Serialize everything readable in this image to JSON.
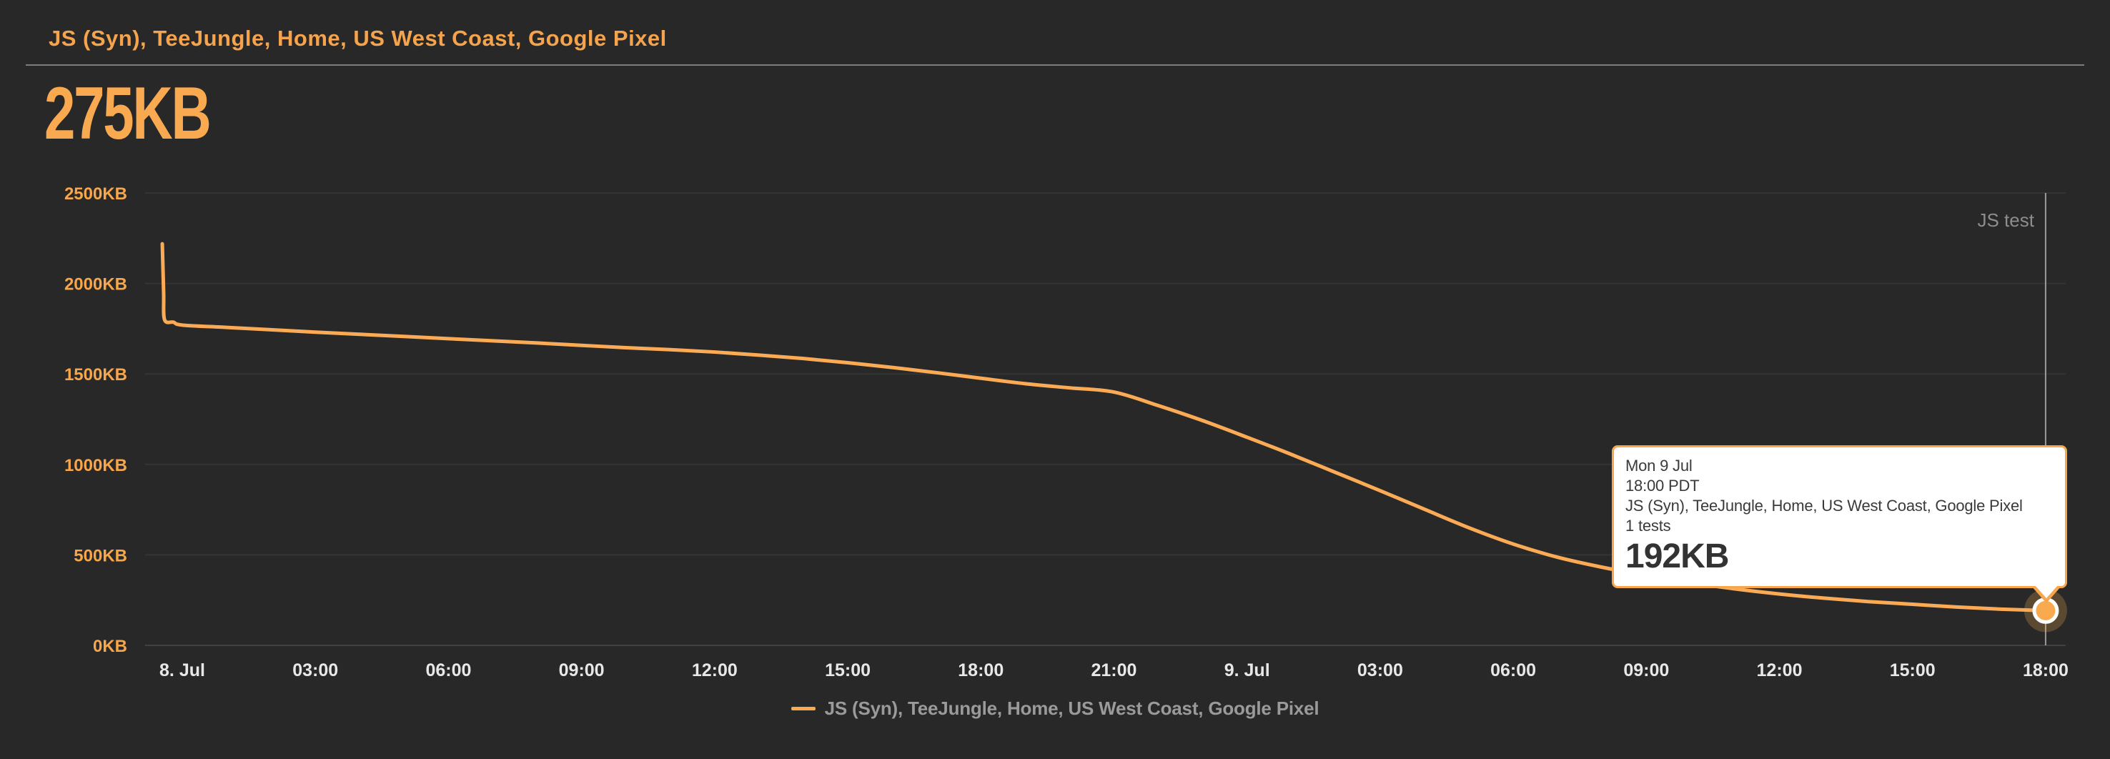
{
  "header": {
    "title": "JS (Syn), TeeJungle, Home, US West Coast, Google Pixel",
    "metric_value": "275KB"
  },
  "chart_data": {
    "type": "line",
    "title": "JS (Syn), TeeJungle, Home, US West Coast, Google Pixel",
    "unit": "KB",
    "ylim": [
      0,
      2500
    ],
    "grid": true,
    "yticks": [
      {
        "value": 2500,
        "label": "2500KB"
      },
      {
        "value": 2000,
        "label": "2000KB"
      },
      {
        "value": 1500,
        "label": "1500KB"
      },
      {
        "value": 1000,
        "label": "1000KB"
      },
      {
        "value": 500,
        "label": "500KB"
      },
      {
        "value": 0,
        "label": "0KB"
      }
    ],
    "xticks": [
      {
        "hour": 0,
        "label": "8. Jul"
      },
      {
        "hour": 3,
        "label": "03:00"
      },
      {
        "hour": 6,
        "label": "06:00"
      },
      {
        "hour": 9,
        "label": "09:00"
      },
      {
        "hour": 12,
        "label": "12:00"
      },
      {
        "hour": 15,
        "label": "15:00"
      },
      {
        "hour": 18,
        "label": "18:00"
      },
      {
        "hour": 21,
        "label": "21:00"
      },
      {
        "hour": 24,
        "label": "9. Jul"
      },
      {
        "hour": 27,
        "label": "03:00"
      },
      {
        "hour": 30,
        "label": "06:00"
      },
      {
        "hour": 33,
        "label": "09:00"
      },
      {
        "hour": 36,
        "label": "12:00"
      },
      {
        "hour": 39,
        "label": "15:00"
      },
      {
        "hour": 42,
        "label": "18:00"
      }
    ],
    "series": [
      {
        "name": "JS (Syn), TeeJungle, Home, US West Coast, Google Pixel",
        "color": "#fbab55",
        "points": [
          [
            -0.45,
            2219
          ],
          [
            -0.42,
            1950
          ],
          [
            -0.4,
            1800
          ],
          [
            -0.2,
            1786
          ],
          [
            0,
            1770
          ],
          [
            1,
            1757
          ],
          [
            2,
            1744
          ],
          [
            3,
            1731
          ],
          [
            4,
            1719
          ],
          [
            5,
            1707
          ],
          [
            6,
            1695
          ],
          [
            7,
            1683
          ],
          [
            8,
            1671
          ],
          [
            9,
            1658
          ],
          [
            10,
            1645
          ],
          [
            11,
            1634
          ],
          [
            12,
            1621
          ],
          [
            13,
            1604
          ],
          [
            14,
            1585
          ],
          [
            15,
            1562
          ],
          [
            16,
            1536
          ],
          [
            17,
            1507
          ],
          [
            18,
            1476
          ],
          [
            19,
            1446
          ],
          [
            20,
            1423
          ],
          [
            21,
            1400
          ],
          [
            22,
            1325
          ],
          [
            23,
            1242
          ],
          [
            24,
            1150
          ],
          [
            25,
            1055
          ],
          [
            26,
            955
          ],
          [
            27,
            855
          ],
          [
            28,
            752
          ],
          [
            29,
            650
          ],
          [
            30,
            560
          ],
          [
            31,
            487
          ],
          [
            32,
            432
          ],
          [
            33,
            386
          ],
          [
            34,
            346
          ],
          [
            35,
            312
          ],
          [
            36,
            284
          ],
          [
            37,
            261
          ],
          [
            38,
            242
          ],
          [
            39,
            227
          ],
          [
            40,
            212
          ],
          [
            41,
            200
          ],
          [
            42,
            192
          ]
        ]
      }
    ],
    "annotation": {
      "label": "JS test",
      "hour": 42
    },
    "marker": {
      "hour": 42,
      "value": 192
    },
    "legend_position": "bottom"
  },
  "tooltip": {
    "date": "Mon 9 Jul",
    "time": "18:00 PDT",
    "series": "JS (Syn), TeeJungle, Home, US West Coast, Google Pixel",
    "tests": "1 tests",
    "value": "192KB"
  },
  "legend": {
    "label": "JS (Syn), TeeJungle, Home, US West Coast, Google Pixel"
  },
  "colors": {
    "background": "#282828",
    "accent_orange": "#f5a34c",
    "line_orange": "#fbab55",
    "marker_orange": "#f9a94e",
    "axis_label": "#f8a64a",
    "x_label": "#e8e8e8",
    "gridline": "#343434",
    "zero_line": "#414141",
    "test_marker_line": "#9a9a9a",
    "annotation_text": "#8d8d8d",
    "legend_text": "#9a9a9a",
    "tooltip_text": "#3a3a3a",
    "divider": "#7d7d7d"
  }
}
